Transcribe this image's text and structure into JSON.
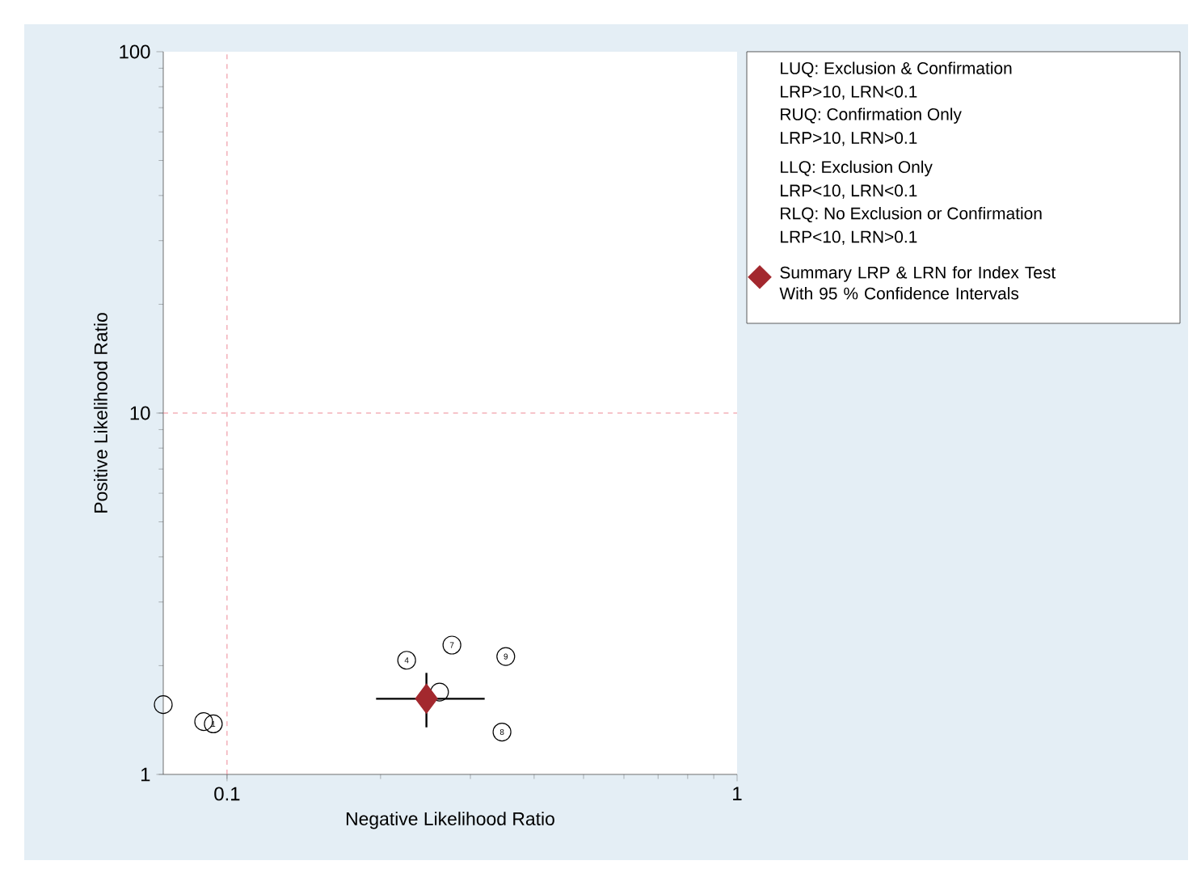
{
  "chart_data": {
    "type": "scatter",
    "xlabel": "Negative Likelihood Ratio",
    "ylabel": "Positive Likelihood Ratio",
    "log": "xy",
    "xlim": [
      0.075,
      1
    ],
    "ylim": [
      1,
      100
    ],
    "xticks": [
      0.1,
      1
    ],
    "yticks": [
      1,
      10,
      100
    ],
    "legend": "right",
    "grid": false,
    "series": [
      {
        "color": "#000000",
        "marker": "circle",
        "x": [
          0.075,
          0.09,
          0.094,
          0.225,
          0.276,
          0.352,
          0.261,
          0.346
        ],
        "values": [
          1.56,
          1.4,
          1.38,
          2.07,
          2.28,
          2.12,
          1.69,
          1.31
        ]
      },
      {
        "name": "Summary LRP & LRN for Index Test With 95 % Confidence Intervals",
        "color": "#a3282e",
        "marker": "diamond",
        "x": [
          0.246
        ],
        "values": [
          1.62
        ],
        "xerrors": [
          [
            0.196,
            0.32
          ]
        ],
        "errors": [
          [
            1.35,
            1.91
          ]
        ]
      }
    ],
    "ref_lines": [
      {
        "axis": "x",
        "value": 0.1,
        "color": "#e8687a",
        "line_style": "dashed"
      },
      {
        "axis": "y",
        "value": 10,
        "color": "#e8687a",
        "line_style": "dashed"
      }
    ],
    "annotations": [
      "LUQ: Exclusion & Confirmation",
      "LRP>10, LRN<0.1",
      "RUQ: Confirmation Only",
      "LRP>10, LRN>0.1",
      "LLQ: Exclusion Only",
      "LRP<10, LRN<0.1",
      "RLQ: No Exclusion or Confirmation",
      "LRP<10, LRN>0.1",
      {
        "text": "1",
        "x": 0.094,
        "y": 1.38
      },
      {
        "text": "4",
        "x": 0.225,
        "y": 2.07
      },
      {
        "text": "7",
        "x": 0.276,
        "y": 2.28
      },
      {
        "text": "9",
        "x": 0.352,
        "y": 2.12
      },
      {
        "text": "8",
        "x": 0.346,
        "y": 1.31
      }
    ]
  }
}
